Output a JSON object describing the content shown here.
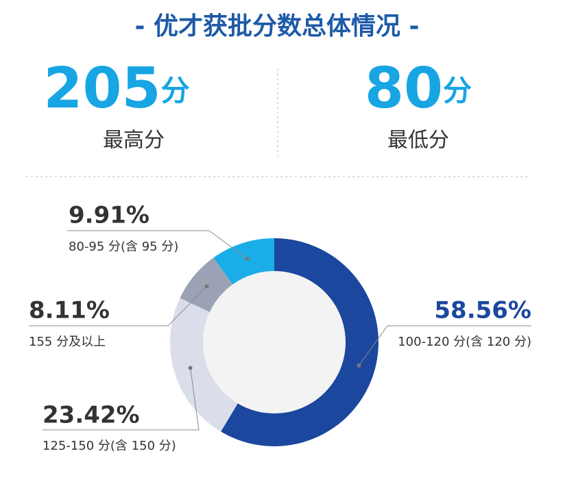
{
  "chart_data": {
    "type": "donut",
    "title": "- 优才获批分数总体情况 -",
    "stats": [
      {
        "value": 205,
        "unit": "分",
        "label": "最高分"
      },
      {
        "value": 80,
        "unit": "分",
        "label": "最低分"
      }
    ],
    "categories": [
      "100-120 分(含 120 分)",
      "125-150 分(含 150 分)",
      "155 分及以上",
      "80-95 分(含 95 分)"
    ],
    "values": [
      58.56,
      23.42,
      8.11,
      9.91
    ],
    "value_labels": [
      "58.56%",
      "23.42%",
      "8.11%",
      "9.91%"
    ],
    "colors": [
      "#1b479e",
      "#dadeea",
      "#9ca2b6",
      "#1aade8"
    ]
  }
}
